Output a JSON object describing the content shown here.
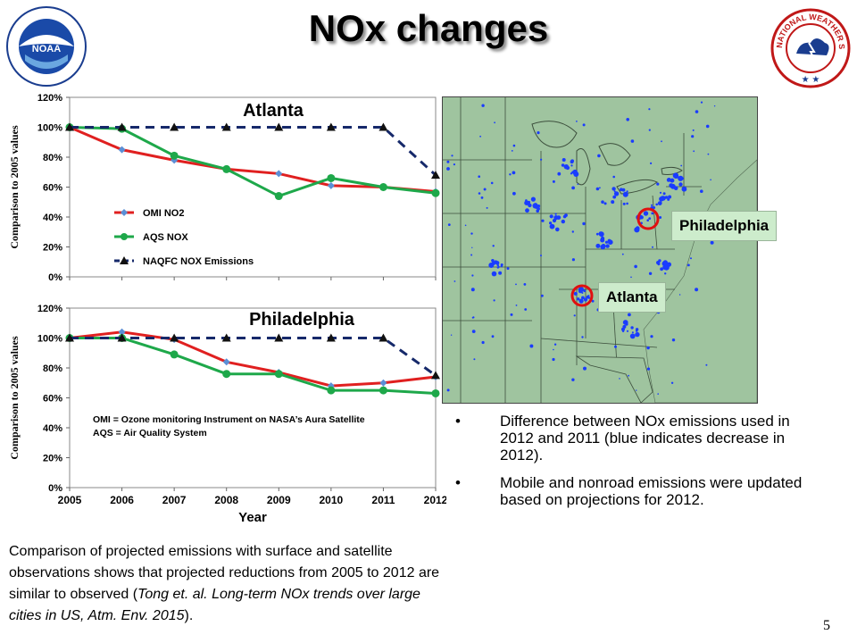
{
  "slide": {
    "title": "NOx changes",
    "page_number": "5",
    "logos": {
      "left": {
        "name": "noaa-logo",
        "text": "NOAA"
      },
      "right": {
        "name": "nws-logo",
        "text": "NATIONAL WEATHER SERVICE"
      }
    }
  },
  "chart_data": [
    {
      "type": "line",
      "title": "Atlanta",
      "ylabel": "Comparison to 2005 values",
      "xlabel": "",
      "x": [
        "2005",
        "2006",
        "2007",
        "2008",
        "2009",
        "2010",
        "2011",
        "2012"
      ],
      "ylim": [
        0,
        120
      ],
      "yticks": [
        "0%",
        "20%",
        "40%",
        "60%",
        "80%",
        "100%",
        "120%"
      ],
      "series": [
        {
          "name": "OMI NO2",
          "color": "#e02020",
          "marker": "diamond",
          "marker_color": "#5b8fd6",
          "values": [
            100,
            85,
            78,
            72,
            69,
            61,
            60,
            57
          ]
        },
        {
          "name": "AQS NOX",
          "color": "#1ea84a",
          "marker": "circle",
          "values": [
            100,
            99,
            81,
            72,
            54,
            66,
            60,
            56
          ]
        },
        {
          "name": "NAQFC NOX Emissions",
          "color": "#16296a",
          "dashed": true,
          "marker": "triangle",
          "values": [
            100,
            100,
            100,
            100,
            100,
            100,
            100,
            68
          ]
        }
      ],
      "legend": {
        "position": "center-left",
        "labels": [
          "OMI NO2",
          "AQS NOX",
          "NAQFC NOX Emissions"
        ]
      }
    },
    {
      "type": "line",
      "title": "Philadelphia",
      "ylabel": "Comparison to 2005 values",
      "xlabel": "Year",
      "x": [
        "2005",
        "2006",
        "2007",
        "2008",
        "2009",
        "2010",
        "2011",
        "2012"
      ],
      "ylim": [
        0,
        120
      ],
      "yticks": [
        "0%",
        "20%",
        "40%",
        "60%",
        "80%",
        "100%",
        "120%"
      ],
      "series": [
        {
          "name": "OMI NO2",
          "color": "#e02020",
          "marker": "diamond",
          "marker_color": "#5b8fd6",
          "values": [
            100,
            104,
            99,
            84,
            77,
            68,
            70,
            74
          ]
        },
        {
          "name": "AQS NOX",
          "color": "#1ea84a",
          "marker": "circle",
          "values": [
            100,
            100,
            89,
            76,
            76,
            65,
            65,
            63
          ]
        },
        {
          "name": "NAQFC NOX Emissions",
          "color": "#16296a",
          "dashed": true,
          "marker": "triangle",
          "values": [
            100,
            100,
            100,
            100,
            100,
            100,
            100,
            75
          ]
        }
      ],
      "notes": [
        "OMI = Ozone monitoring Instrument on NASA’s Aura Satellite",
        "AQS = Air Quality System"
      ]
    }
  ],
  "map": {
    "labels": {
      "philadelphia": "Philadelphia",
      "atlanta": "Atlanta"
    },
    "land_color": "#9fc49f",
    "decrease_color": "#1a3cff"
  },
  "bullets": [
    "Difference between NOx emissions used in 2012 and 2011 (blue indicates decrease in 2012).",
    "Mobile and nonroad emissions were updated based on projections for 2012."
  ],
  "caption": {
    "plain": "Comparison of projected emissions with surface and satellite observations shows that projected reductions from 2005 to 2012 are similar to observed (",
    "italic": "Tong et. al. Long-term NOx trends over large cities in US, Atm. Env. 2015",
    "end": ")."
  }
}
